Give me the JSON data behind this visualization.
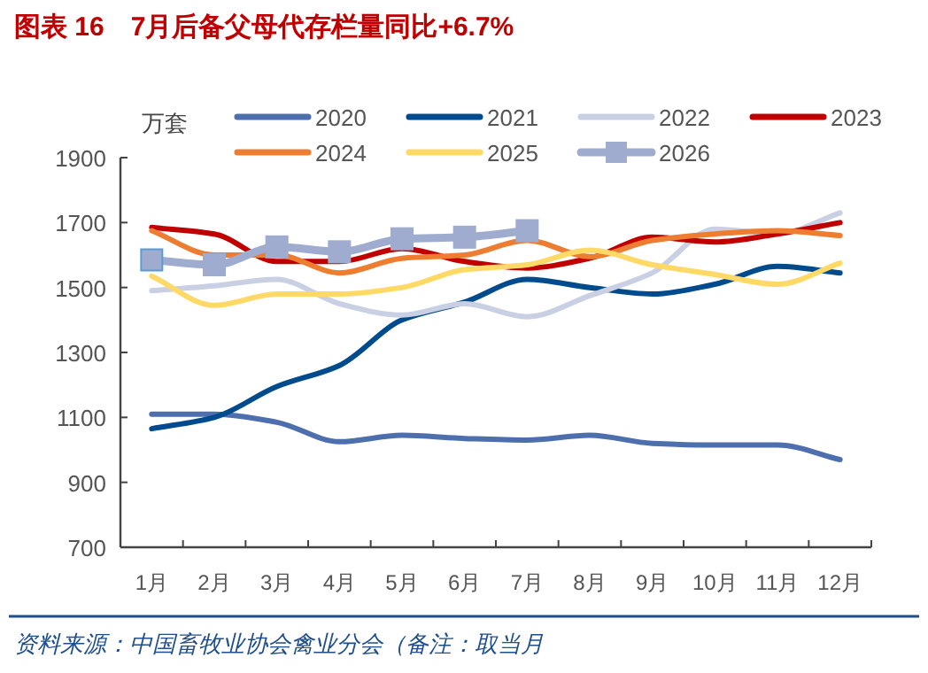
{
  "chart_data": {
    "type": "line",
    "title": "图表 16　7月后备父母代存栏量同比+6.7%",
    "ylabel": "万套",
    "annotations": [
      "资料来源：中国畜牧业协会禽业分会（备注：取当月"
    ],
    "categories": [
      "1月",
      "2月",
      "3月",
      "4月",
      "5月",
      "6月",
      "7月",
      "8月",
      "9月",
      "10月",
      "11月",
      "12月"
    ],
    "ylim": [
      700,
      1900
    ],
    "yticks": [
      700,
      900,
      1100,
      1300,
      1500,
      1700,
      1900
    ],
    "grid": false,
    "legend": "top",
    "series": [
      {
        "name": "2020",
        "color": "#4e6fae",
        "marker": "none",
        "values": [
          1110,
          1110,
          1085,
          1025,
          1045,
          1035,
          1030,
          1045,
          1020,
          1015,
          1015,
          970
        ]
      },
      {
        "name": "2021",
        "color": "#004b8d",
        "marker": "none",
        "values": [
          1065,
          1100,
          1195,
          1260,
          1400,
          1455,
          1525,
          1500,
          1480,
          1510,
          1565,
          1545
        ]
      },
      {
        "name": "2022",
        "color": "#c9d0e3",
        "marker": "none",
        "values": [
          1490,
          1505,
          1525,
          1450,
          1415,
          1450,
          1410,
          1475,
          1545,
          1680,
          1665,
          1730
        ]
      },
      {
        "name": "2023",
        "color": "#c00000",
        "marker": "none",
        "values": [
          1685,
          1665,
          1580,
          1580,
          1620,
          1580,
          1560,
          1590,
          1655,
          1640,
          1665,
          1700
        ]
      },
      {
        "name": "2024",
        "color": "#ed7d31",
        "marker": "none",
        "values": [
          1675,
          1600,
          1600,
          1545,
          1590,
          1600,
          1645,
          1595,
          1645,
          1665,
          1675,
          1660
        ]
      },
      {
        "name": "2025",
        "color": "#ffd966",
        "marker": "none",
        "values": [
          1535,
          1445,
          1480,
          1480,
          1500,
          1555,
          1570,
          1615,
          1570,
          1540,
          1510,
          1575
        ]
      },
      {
        "name": "2026",
        "color": "#9facd0",
        "marker": "square",
        "values": [
          1585,
          1570,
          1625,
          1610,
          1650,
          1655,
          1675,
          null,
          null,
          null,
          null,
          null
        ]
      }
    ]
  }
}
